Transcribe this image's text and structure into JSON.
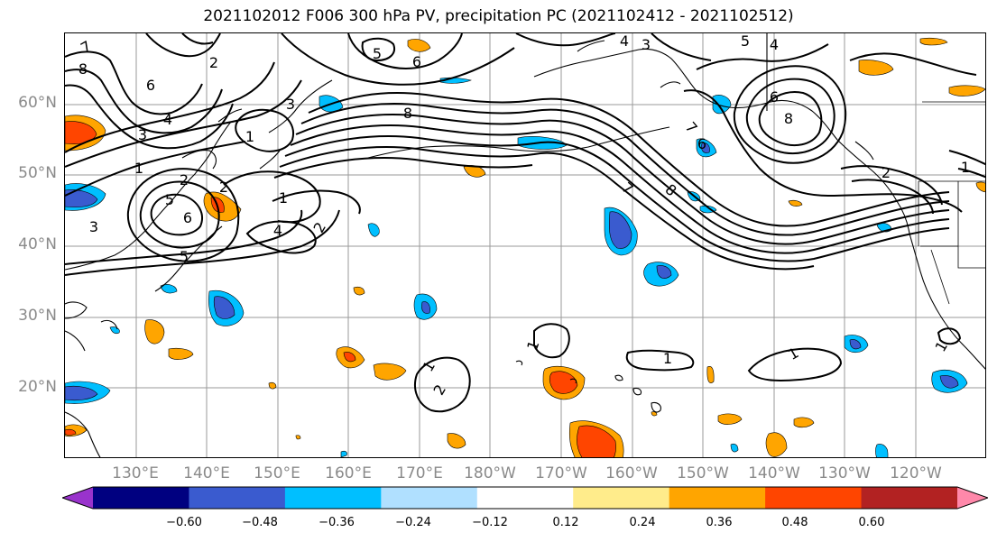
{
  "title": "2021102012 F006 300 hPa PV, precipitation PC (2021102412 - 2021102512)",
  "lat_labels": [
    "60°N",
    "50°N",
    "40°N",
    "30°N",
    "20°N"
  ],
  "lon_labels": [
    "130°E",
    "140°E",
    "150°E",
    "160°E",
    "170°E",
    "180°W",
    "170°W",
    "160°W",
    "150°W",
    "140°W",
    "130°W",
    "120°W"
  ],
  "colorbar": {
    "colors": [
      "#9933cc",
      "#000080",
      "#3a5bcf",
      "#00bfff",
      "#b0e0ff",
      "#ffffff",
      "#ffec8b",
      "#ffa500",
      "#ff4500",
      "#b22222",
      "#ff88aa"
    ],
    "ticks": [
      "−0.60",
      "−0.48",
      "−0.36",
      "−0.24",
      "−0.12",
      "0.12",
      "0.24",
      "0.36",
      "0.48",
      "0.60"
    ]
  },
  "contour_labels": {
    "nw_8": "8",
    "nw_7": "7",
    "nw_6": "6",
    "nw_5": "5",
    "nw_4": "4",
    "nw_3": "3",
    "nw_2": "2",
    "nw_1": "1",
    "top_2": "2",
    "top_5": "5",
    "top_6": "6",
    "jet_3": "3",
    "jet_8": "8",
    "mid_1": "1",
    "low_6": "6",
    "low_5": "5",
    "low_4": "4",
    "low_3": "3",
    "low_2": "2",
    "low_2b": "2",
    "low_1": "1",
    "stream_8": "8",
    "stream_7": "7",
    "ne_4": "4",
    "ne_3": "3",
    "ne_5": "5",
    "ne_6": "6",
    "ne_8": "8",
    "ne_7": "7",
    "ne_2": "2",
    "ne_4b": "4",
    "ne_1": "1",
    "gulf_6": "6",
    "trop_1a": "1",
    "trop_1b": "1",
    "trop_1c": "1",
    "trop_1d": "1",
    "trop_2": "2",
    "trop_1e": "1"
  }
}
